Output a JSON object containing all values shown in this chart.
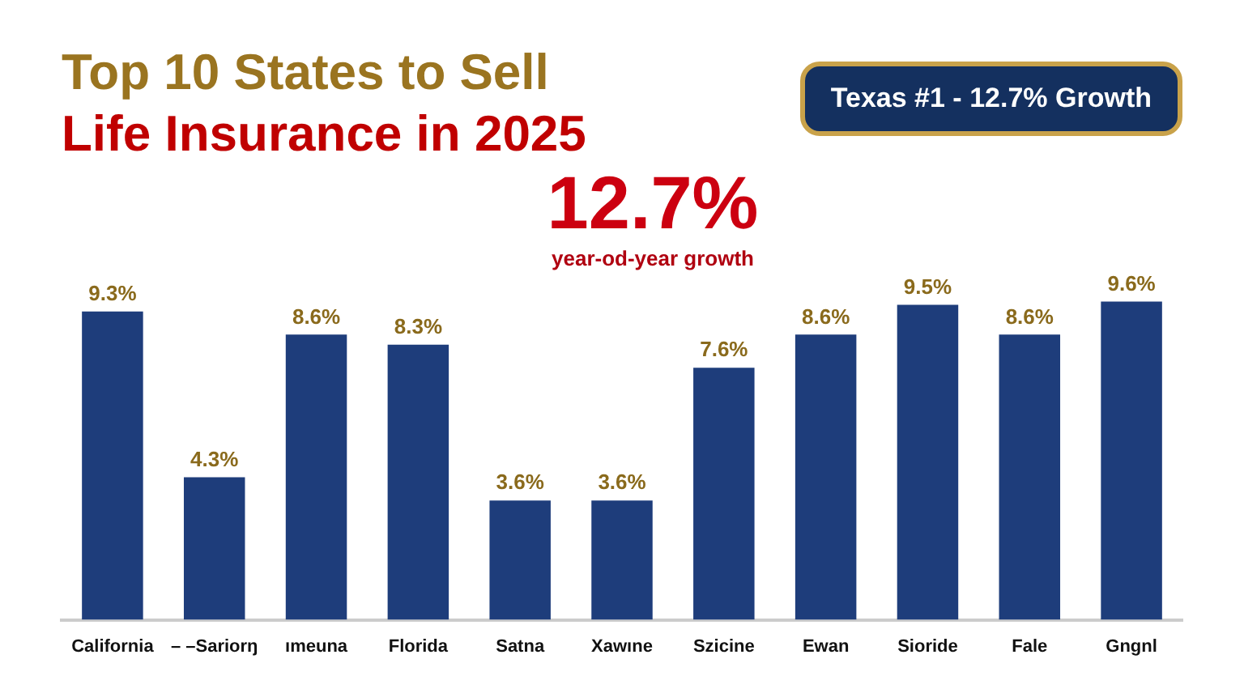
{
  "chart_data": {
    "type": "bar",
    "title": "Top 10 States to Sell Life Insurance in 2025",
    "categories": [
      "California",
      "– –Sariorŋ",
      "ımeuna",
      "Florida",
      "Satna",
      "Xawıne",
      "Szicine",
      "Ewan",
      "Sioride",
      "Fale",
      "Gngnl"
    ],
    "values": [
      9.3,
      4.3,
      8.6,
      8.3,
      3.6,
      3.6,
      7.6,
      8.6,
      9.5,
      8.6,
      9.6
    ],
    "value_labels": [
      "9.3%",
      "4.3%",
      "8.6%",
      "8.3%",
      "3.6%",
      "3.6%",
      "7.6%",
      "8.6%",
      "9.5%",
      "8.6%",
      "9.6%"
    ],
    "color": "#1e3d7b",
    "grid": false,
    "legend": false,
    "annotations": [
      "Texas #1 - 12.7% Growth",
      "12.7%",
      "year-od-year growth"
    ]
  }
}
